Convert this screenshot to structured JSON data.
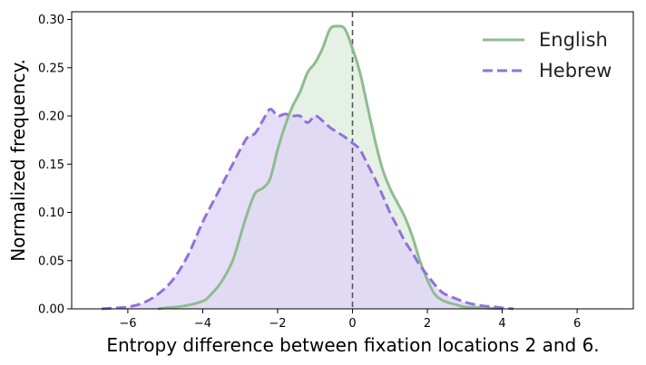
{
  "chart_data": {
    "type": "area",
    "title": "",
    "xlabel": "Entropy difference between fixation locations 2 and 6.",
    "ylabel": "Normalized frequency.",
    "xlim": [
      -7.5,
      7.5
    ],
    "ylim": [
      0,
      0.308
    ],
    "xticks": [
      -6,
      -4,
      -2,
      0,
      2,
      4,
      6
    ],
    "yticks": [
      0.0,
      0.05,
      0.1,
      0.15,
      0.2,
      0.25,
      0.3
    ],
    "xtick_labels": [
      "−6",
      "−4",
      "−2",
      "0",
      "2",
      "4",
      "6"
    ],
    "ytick_labels": [
      "0.00",
      "0.05",
      "0.10",
      "0.15",
      "0.20",
      "0.25",
      "0.30"
    ],
    "grid": false,
    "legend_position": "top-right",
    "reference_line": {
      "x": 0,
      "style": "dashed",
      "color": "#555555"
    },
    "series": [
      {
        "name": "English",
        "color": "#8fbc8f",
        "fill": "#dcecdc",
        "line_style": "solid",
        "x": [
          -5.2,
          -5.0,
          -4.5,
          -4.0,
          -3.8,
          -3.5,
          -3.2,
          -3.0,
          -2.8,
          -2.6,
          -2.4,
          -2.2,
          -2.0,
          -1.8,
          -1.6,
          -1.4,
          -1.2,
          -1.0,
          -0.8,
          -0.6,
          -0.4,
          -0.2,
          0.0,
          0.2,
          0.4,
          0.6,
          0.8,
          1.0,
          1.2,
          1.4,
          1.6,
          1.8,
          2.0,
          2.2,
          2.4,
          2.6,
          2.8,
          3.0,
          3.5,
          4.0
        ],
        "y": [
          0.0,
          0.001,
          0.003,
          0.008,
          0.014,
          0.028,
          0.05,
          0.075,
          0.1,
          0.12,
          0.125,
          0.135,
          0.165,
          0.19,
          0.21,
          0.225,
          0.245,
          0.255,
          0.27,
          0.29,
          0.293,
          0.29,
          0.27,
          0.245,
          0.21,
          0.175,
          0.145,
          0.125,
          0.11,
          0.095,
          0.075,
          0.05,
          0.03,
          0.015,
          0.009,
          0.006,
          0.004,
          0.002,
          0.001,
          0.0
        ]
      },
      {
        "name": "Hebrew",
        "color": "#9370db",
        "fill": "#ddd3f5",
        "line_style": "dashed",
        "x": [
          -6.7,
          -6.3,
          -6.0,
          -5.6,
          -5.2,
          -4.8,
          -4.4,
          -4.0,
          -3.6,
          -3.2,
          -3.0,
          -2.8,
          -2.6,
          -2.4,
          -2.2,
          -2.0,
          -1.8,
          -1.6,
          -1.4,
          -1.2,
          -1.0,
          -0.8,
          -0.6,
          -0.4,
          -0.2,
          0.0,
          0.2,
          0.4,
          0.6,
          0.8,
          1.0,
          1.2,
          1.4,
          1.6,
          1.8,
          2.0,
          2.2,
          2.4,
          2.6,
          2.8,
          3.0,
          3.2,
          3.5,
          3.8,
          4.0,
          4.3
        ],
        "y": [
          0.0,
          0.001,
          0.002,
          0.006,
          0.015,
          0.03,
          0.055,
          0.09,
          0.12,
          0.15,
          0.165,
          0.178,
          0.182,
          0.195,
          0.207,
          0.2,
          0.202,
          0.2,
          0.2,
          0.193,
          0.2,
          0.195,
          0.188,
          0.183,
          0.178,
          0.172,
          0.165,
          0.15,
          0.135,
          0.118,
          0.1,
          0.085,
          0.07,
          0.058,
          0.045,
          0.035,
          0.025,
          0.017,
          0.013,
          0.01,
          0.007,
          0.005,
          0.003,
          0.002,
          0.001,
          0.0
        ]
      }
    ]
  }
}
